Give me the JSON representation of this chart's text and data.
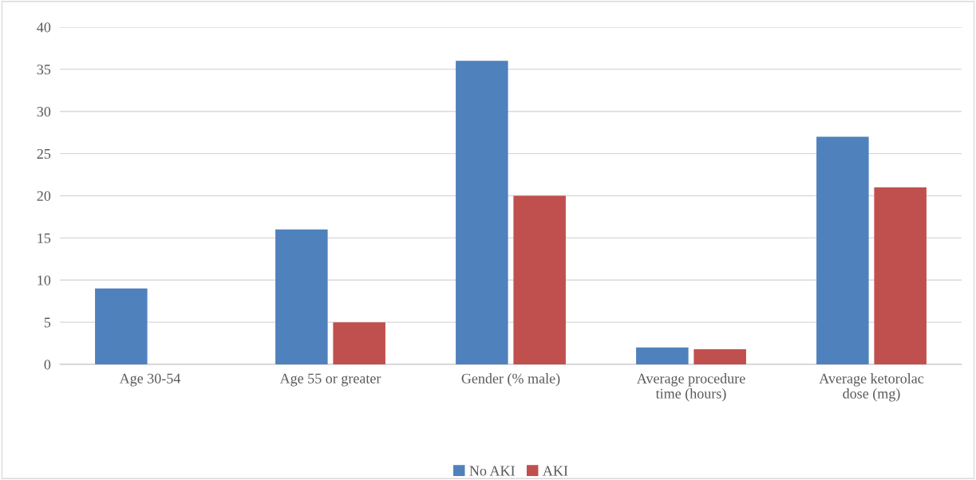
{
  "chart_data": {
    "type": "bar",
    "categories": [
      "Age 30-54",
      "Age 55 or greater",
      "Gender (% male)",
      "Average procedure time (hours)",
      "Average ketorolac dose (mg)"
    ],
    "series": [
      {
        "name": "No AKI",
        "color": "#4f81bd",
        "values": [
          9,
          16,
          36,
          2,
          27
        ]
      },
      {
        "name": "AKI",
        "color": "#c0504d",
        "values": [
          0,
          5,
          20,
          1.8,
          21
        ]
      }
    ],
    "ylim": [
      0,
      40
    ],
    "yticks": [
      0,
      5,
      10,
      15,
      20,
      25,
      30,
      35,
      40
    ],
    "grid": "y",
    "legend": "bottom"
  }
}
